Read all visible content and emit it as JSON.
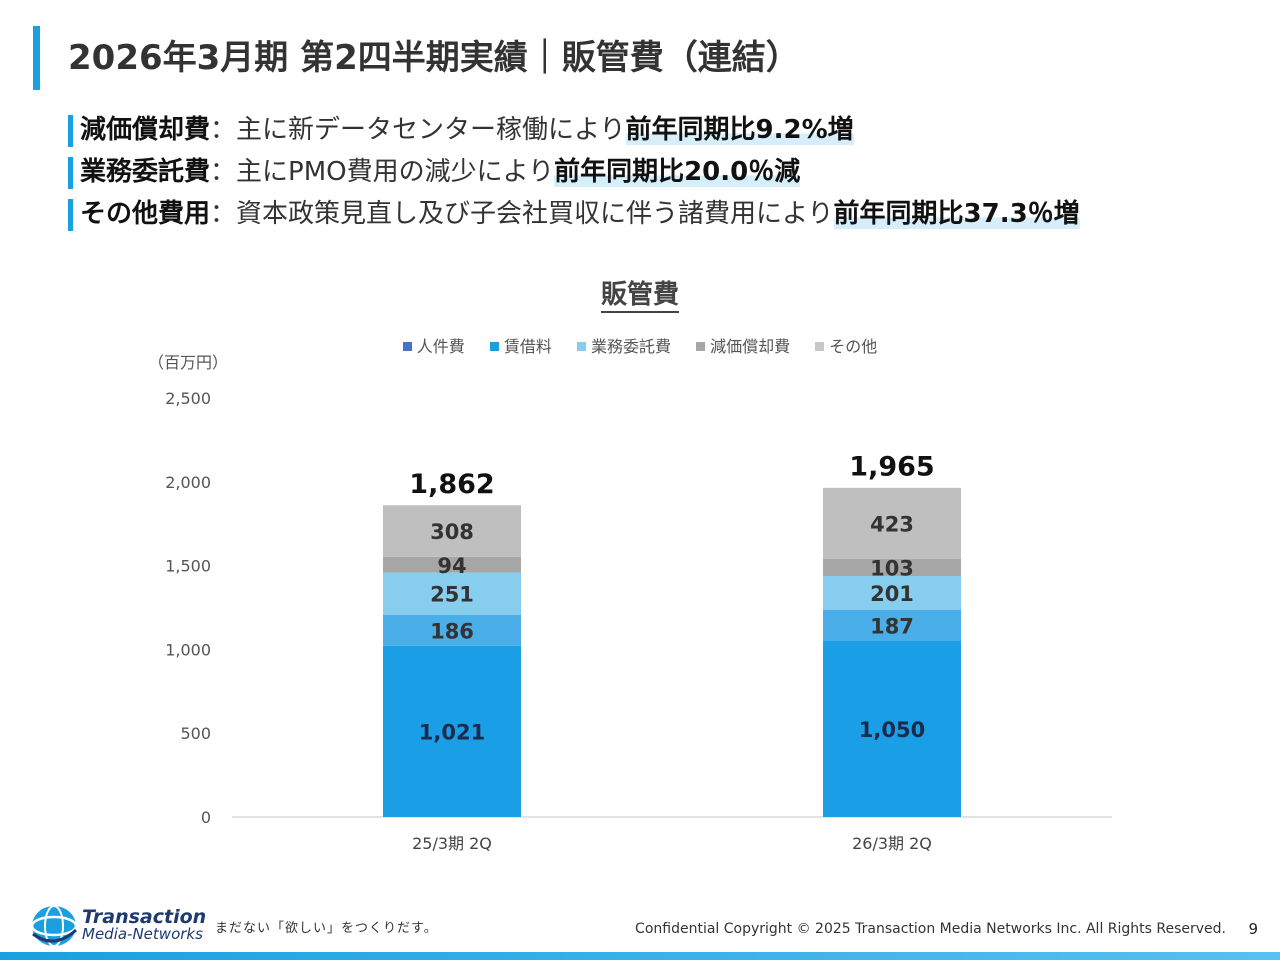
{
  "slide": {
    "title": "2026年3月期 第2四半期実績｜販管費（連結）",
    "page_number": "9"
  },
  "bullets": [
    {
      "label": "減価償却費",
      "sep": "：",
      "text": "主に新データセンター稼働により",
      "highlight": "前年同期比9.2%増"
    },
    {
      "label": "業務委託費",
      "sep": "：",
      "text": "主にPMO費用の減少により",
      "highlight": "前年同期比20.0％減"
    },
    {
      "label": "その他費用",
      "sep": "：",
      "text": "資本政策見直し及び子会社買収に伴う諸費用により",
      "highlight": "前年同期比37.3％増"
    }
  ],
  "chart_data": {
    "type": "bar",
    "stacked": true,
    "title": "販管費",
    "ylabel": "（百万円）",
    "ylim": [
      0,
      2500
    ],
    "yticks": [
      0,
      500,
      1000,
      1500,
      2000,
      2500
    ],
    "ytick_labels": [
      "0",
      "500",
      "1,000",
      "1,500",
      "2,000",
      "2,500"
    ],
    "categories": [
      "25/3期 2Q",
      "26/3期 2Q"
    ],
    "totals": [
      1862,
      1965
    ],
    "total_labels": [
      "1,862",
      "1,965"
    ],
    "series": [
      {
        "name": "人件費",
        "values": [
          1021,
          1050
        ],
        "labels": [
          "1,021",
          "1,050"
        ],
        "color": "#1a9ee6"
      },
      {
        "name": "賃借料",
        "values": [
          186,
          187
        ],
        "labels": [
          "186",
          "187"
        ],
        "color": "#4aaee8"
      },
      {
        "name": "業務委託費",
        "values": [
          251,
          201
        ],
        "labels": [
          "251",
          "201"
        ],
        "color": "#86cdee"
      },
      {
        "name": "減価償却費",
        "values": [
          94,
          103
        ],
        "labels": [
          "94",
          "103"
        ],
        "color": "#a6a6a6"
      },
      {
        "name": "その他",
        "values": [
          308,
          423
        ],
        "labels": [
          "308",
          "423"
        ],
        "color": "#bfbfbf"
      }
    ],
    "legend": [
      {
        "name": "人件費",
        "color": "#4472c4"
      },
      {
        "name": "賃借料",
        "color": "#1aa0e0"
      },
      {
        "name": "業務委託費",
        "color": "#86cdee"
      },
      {
        "name": "減価償却費",
        "color": "#a6a6a6"
      },
      {
        "name": "その他",
        "color": "#c8c8c8"
      }
    ]
  },
  "footer": {
    "logo_line1": "Transaction",
    "logo_line2": "Media-Networks",
    "tagline": "まだない「欲しい」をつくりだす。",
    "copyright": "Confidential  Copyright © 2025 Transaction Media Networks Inc. All Rights Reserved."
  }
}
